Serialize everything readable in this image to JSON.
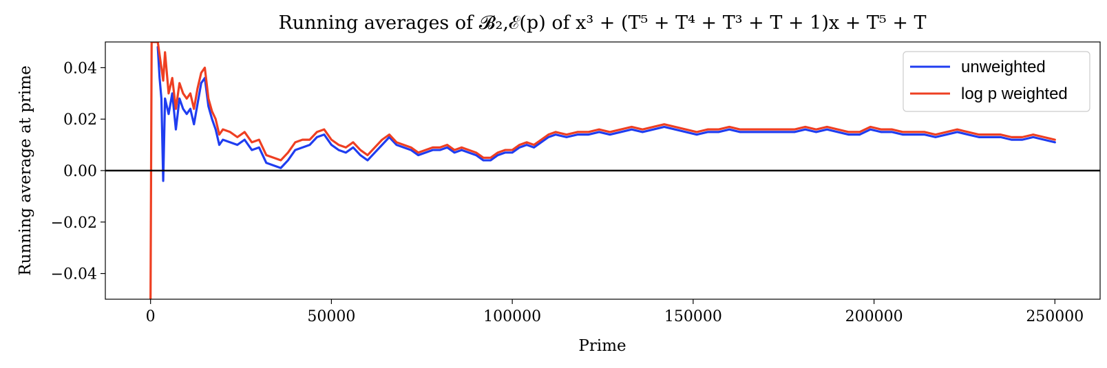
{
  "chart_data": {
    "type": "line",
    "title": "Running averages of 𝓑₂,ℰ(p) of x³ + (T⁵ + T⁴ + T³ + T + 1)x + T⁵ + T",
    "xlabel": "Prime",
    "ylabel": "Running average at prime",
    "xlim": [
      -12500,
      262500
    ],
    "ylim": [
      -0.05,
      0.05
    ],
    "xticks": [
      0,
      50000,
      100000,
      150000,
      200000,
      250000
    ],
    "xtick_labels": [
      "0",
      "50000",
      "100000",
      "150000",
      "200000",
      "250000"
    ],
    "yticks": [
      -0.04,
      -0.02,
      0.0,
      0.02,
      0.04
    ],
    "ytick_labels": [
      "−0.04",
      "−0.02",
      "0.00",
      "0.02",
      "0.04"
    ],
    "grid": false,
    "legend_position": "top-right",
    "reference_line": {
      "y": 0,
      "color": "#000000"
    },
    "series": [
      {
        "name": "unweighted",
        "color": "#1f3df0",
        "x": [
          2000,
          2500,
          3000,
          3500,
          4000,
          5000,
          6000,
          7000,
          8000,
          9000,
          10000,
          11000,
          12000,
          13000,
          14000,
          15000,
          16000,
          17000,
          18000,
          19000,
          20000,
          22000,
          24000,
          26000,
          28000,
          30000,
          32000,
          34000,
          36000,
          38000,
          40000,
          42000,
          44000,
          46000,
          48000,
          50000,
          52000,
          54000,
          56000,
          58000,
          60000,
          62000,
          64000,
          66000,
          68000,
          70000,
          72000,
          74000,
          76000,
          78000,
          80000,
          82000,
          84000,
          86000,
          88000,
          90000,
          92000,
          94000,
          96000,
          98000,
          100000,
          102000,
          104000,
          106000,
          108000,
          110000,
          112000,
          115000,
          118000,
          121000,
          124000,
          127000,
          130000,
          133000,
          136000,
          139000,
          142000,
          145000,
          148000,
          151000,
          154000,
          157000,
          160000,
          163000,
          166000,
          169000,
          172000,
          175000,
          178000,
          181000,
          184000,
          187000,
          190000,
          193000,
          196000,
          199000,
          202000,
          205000,
          208000,
          211000,
          214000,
          217000,
          220000,
          223000,
          226000,
          229000,
          232000,
          235000,
          238000,
          241000,
          244000,
          247000,
          250000
        ],
        "values": [
          0.048,
          0.036,
          0.028,
          -0.004,
          0.028,
          0.022,
          0.03,
          0.016,
          0.028,
          0.024,
          0.022,
          0.024,
          0.018,
          0.026,
          0.034,
          0.036,
          0.025,
          0.02,
          0.016,
          0.01,
          0.012,
          0.011,
          0.01,
          0.012,
          0.008,
          0.009,
          0.003,
          0.002,
          0.001,
          0.004,
          0.008,
          0.009,
          0.01,
          0.013,
          0.014,
          0.01,
          0.008,
          0.007,
          0.009,
          0.006,
          0.004,
          0.007,
          0.01,
          0.013,
          0.01,
          0.009,
          0.008,
          0.006,
          0.007,
          0.008,
          0.008,
          0.009,
          0.007,
          0.008,
          0.007,
          0.006,
          0.004,
          0.004,
          0.006,
          0.007,
          0.007,
          0.009,
          0.01,
          0.009,
          0.011,
          0.013,
          0.014,
          0.013,
          0.014,
          0.014,
          0.015,
          0.014,
          0.015,
          0.016,
          0.015,
          0.016,
          0.017,
          0.016,
          0.015,
          0.014,
          0.015,
          0.015,
          0.016,
          0.015,
          0.015,
          0.015,
          0.015,
          0.015,
          0.015,
          0.016,
          0.015,
          0.016,
          0.015,
          0.014,
          0.014,
          0.016,
          0.015,
          0.015,
          0.014,
          0.014,
          0.014,
          0.013,
          0.014,
          0.015,
          0.014,
          0.013,
          0.013,
          0.013,
          0.012,
          0.012,
          0.013,
          0.012,
          0.011
        ]
      },
      {
        "name": "log p weighted",
        "color": "#ee3f22",
        "x": [
          0,
          300,
          800,
          1500,
          2000,
          2500,
          3000,
          3500,
          4000,
          5000,
          6000,
          7000,
          8000,
          9000,
          10000,
          11000,
          12000,
          13000,
          14000,
          15000,
          16000,
          17000,
          18000,
          19000,
          20000,
          22000,
          24000,
          26000,
          28000,
          30000,
          32000,
          34000,
          36000,
          38000,
          40000,
          42000,
          44000,
          46000,
          48000,
          50000,
          52000,
          54000,
          56000,
          58000,
          60000,
          62000,
          64000,
          66000,
          68000,
          70000,
          72000,
          74000,
          76000,
          78000,
          80000,
          82000,
          84000,
          86000,
          88000,
          90000,
          92000,
          94000,
          96000,
          98000,
          100000,
          102000,
          104000,
          106000,
          108000,
          110000,
          112000,
          115000,
          118000,
          121000,
          124000,
          127000,
          130000,
          133000,
          136000,
          139000,
          142000,
          145000,
          148000,
          151000,
          154000,
          157000,
          160000,
          163000,
          166000,
          169000,
          172000,
          175000,
          178000,
          181000,
          184000,
          187000,
          190000,
          193000,
          196000,
          199000,
          202000,
          205000,
          208000,
          211000,
          214000,
          217000,
          220000,
          223000,
          226000,
          229000,
          232000,
          235000,
          238000,
          241000,
          244000,
          247000,
          250000
        ],
        "values": [
          -0.05,
          0.05,
          0.05,
          0.05,
          0.05,
          0.045,
          0.04,
          0.035,
          0.046,
          0.03,
          0.036,
          0.024,
          0.034,
          0.03,
          0.028,
          0.03,
          0.024,
          0.032,
          0.038,
          0.04,
          0.028,
          0.023,
          0.02,
          0.014,
          0.016,
          0.015,
          0.013,
          0.015,
          0.011,
          0.012,
          0.006,
          0.005,
          0.004,
          0.007,
          0.011,
          0.012,
          0.012,
          0.015,
          0.016,
          0.012,
          0.01,
          0.009,
          0.011,
          0.008,
          0.006,
          0.009,
          0.012,
          0.014,
          0.011,
          0.01,
          0.009,
          0.007,
          0.008,
          0.009,
          0.009,
          0.01,
          0.008,
          0.009,
          0.008,
          0.007,
          0.005,
          0.005,
          0.007,
          0.008,
          0.008,
          0.01,
          0.011,
          0.01,
          0.012,
          0.014,
          0.015,
          0.014,
          0.015,
          0.015,
          0.016,
          0.015,
          0.016,
          0.017,
          0.016,
          0.017,
          0.018,
          0.017,
          0.016,
          0.015,
          0.016,
          0.016,
          0.017,
          0.016,
          0.016,
          0.016,
          0.016,
          0.016,
          0.016,
          0.017,
          0.016,
          0.017,
          0.016,
          0.015,
          0.015,
          0.017,
          0.016,
          0.016,
          0.015,
          0.015,
          0.015,
          0.014,
          0.015,
          0.016,
          0.015,
          0.014,
          0.014,
          0.014,
          0.013,
          0.013,
          0.014,
          0.013,
          0.012
        ]
      }
    ]
  }
}
